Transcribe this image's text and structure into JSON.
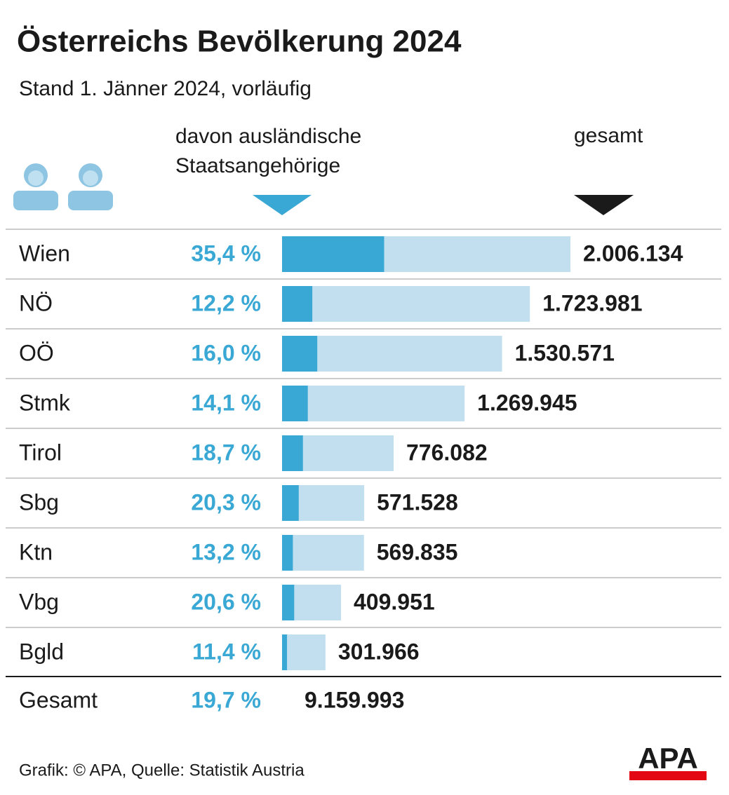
{
  "chart_data": {
    "type": "bar",
    "title": "Österreichs Bevölkerung 2024",
    "subtitle": "Stand 1. Jänner 2024, vorläufig",
    "categories": [
      "Wien",
      "NÖ",
      "OÖ",
      "Stmk",
      "Tirol",
      "Sbg",
      "Ktn",
      "Vbg",
      "Bgld"
    ],
    "series": [
      {
        "name": "gesamt",
        "color": "#c2dff0",
        "values": [
          2006134,
          1723981,
          1530571,
          1269945,
          776082,
          571528,
          569835,
          409951,
          301966
        ],
        "value_labels": [
          "2.006.134",
          "1.723.981",
          "1.530.571",
          "1.269.945",
          "776.082",
          "571.528",
          "569.835",
          "409.951",
          "301.966"
        ]
      },
      {
        "name": "davon ausländische Staatsangehörige",
        "color": "#3aa8d4",
        "values": [
          35.4,
          12.2,
          16.0,
          14.1,
          18.7,
          20.3,
          13.2,
          20.6,
          11.4
        ],
        "value_labels": [
          "35,4 %",
          "12,2 %",
          "16,0 %",
          "14,1 %",
          "18,7 %",
          "20,3 %",
          "13,2 %",
          "20,6 %",
          "11,4 %"
        ]
      }
    ],
    "total": {
      "label": "Gesamt",
      "share": 19.7,
      "share_label": "19,7 %",
      "value": 9159993,
      "value_label": "9.159.993"
    },
    "source": "Grafik: © APA, Quelle: Statistik Austria",
    "logo": "APA"
  }
}
